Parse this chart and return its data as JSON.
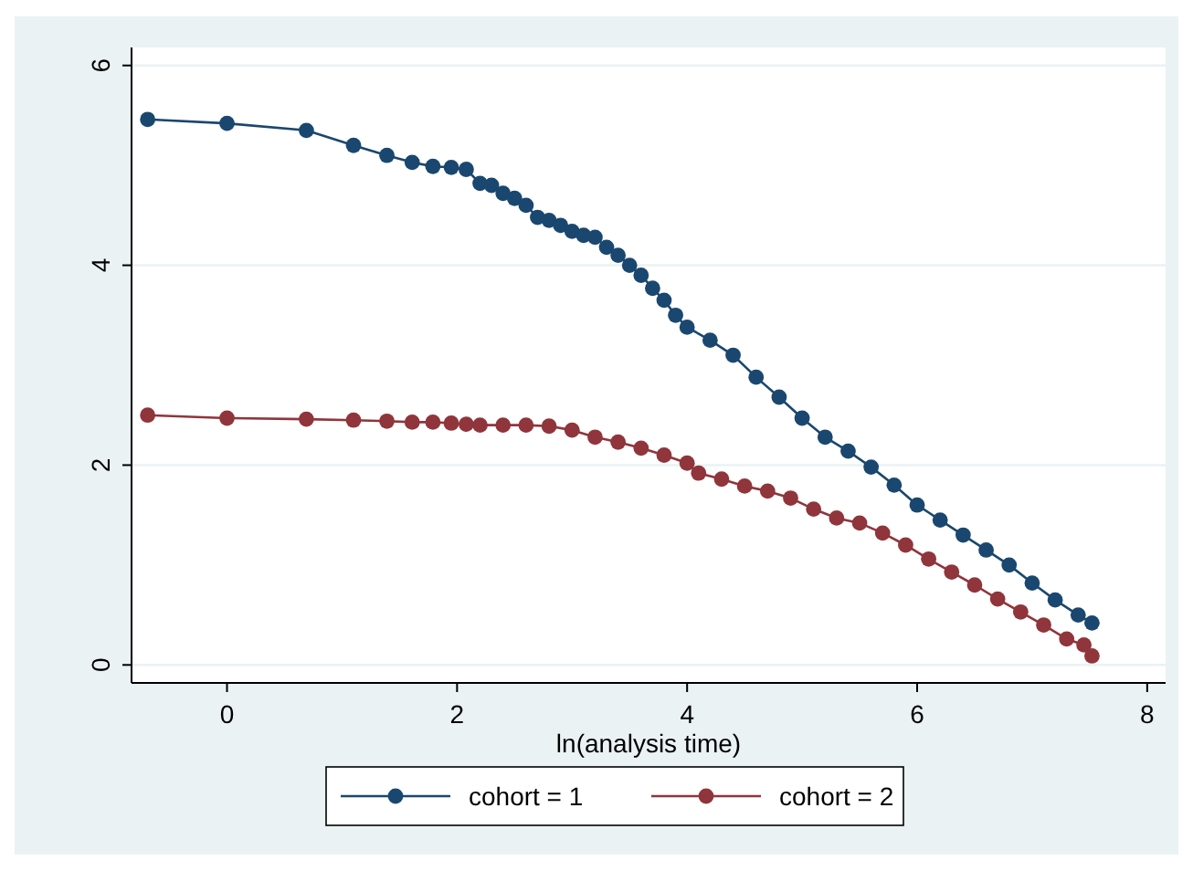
{
  "chart_data": {
    "type": "line",
    "xlabel": "ln(analysis time)",
    "xlim": [
      -0.83,
      8.16
    ],
    "xticks": [
      0,
      2,
      4,
      6,
      8
    ],
    "ylim": [
      -0.18,
      6.18
    ],
    "yticks": [
      0,
      2,
      4,
      6
    ],
    "grid": "y",
    "legend": "bottom",
    "marker": "circle",
    "line_style": "solid",
    "series": [
      {
        "name": "cohort = 1",
        "color": "#1a476f",
        "x": [
          -0.69,
          0,
          0.69,
          1.1,
          1.39,
          1.61,
          1.79,
          1.95,
          2.08,
          2.2,
          2.3,
          2.4,
          2.5,
          2.6,
          2.7,
          2.8,
          2.9,
          3.0,
          3.1,
          3.2,
          3.3,
          3.4,
          3.5,
          3.6,
          3.7,
          3.8,
          3.9,
          4.0,
          4.2,
          4.4,
          4.6,
          4.8,
          5.0,
          5.2,
          5.4,
          5.6,
          5.8,
          6.0,
          6.2,
          6.4,
          6.6,
          6.8,
          7.0,
          7.2,
          7.4,
          7.52
        ],
        "values": [
          5.46,
          5.42,
          5.35,
          5.2,
          5.1,
          5.03,
          4.99,
          4.98,
          4.96,
          4.82,
          4.8,
          4.72,
          4.67,
          4.6,
          4.48,
          4.45,
          4.4,
          4.34,
          4.3,
          4.28,
          4.18,
          4.1,
          4.0,
          3.9,
          3.77,
          3.65,
          3.5,
          3.38,
          3.25,
          3.1,
          2.88,
          2.68,
          2.47,
          2.28,
          2.14,
          1.98,
          1.8,
          1.6,
          1.45,
          1.3,
          1.15,
          1.0,
          0.82,
          0.65,
          0.5,
          0.42
        ]
      },
      {
        "name": "cohort = 2",
        "color": "#90353b",
        "x": [
          -0.69,
          0,
          0.69,
          1.1,
          1.39,
          1.61,
          1.79,
          1.95,
          2.08,
          2.2,
          2.4,
          2.6,
          2.8,
          3.0,
          3.2,
          3.4,
          3.6,
          3.8,
          4.0,
          4.1,
          4.3,
          4.5,
          4.7,
          4.9,
          5.1,
          5.3,
          5.5,
          5.7,
          5.9,
          6.1,
          6.3,
          6.5,
          6.7,
          6.9,
          7.1,
          7.3,
          7.45,
          7.52
        ],
        "values": [
          2.5,
          2.47,
          2.46,
          2.45,
          2.44,
          2.43,
          2.43,
          2.42,
          2.41,
          2.4,
          2.4,
          2.4,
          2.39,
          2.35,
          2.28,
          2.23,
          2.17,
          2.1,
          2.02,
          1.92,
          1.86,
          1.79,
          1.74,
          1.67,
          1.56,
          1.47,
          1.42,
          1.32,
          1.2,
          1.06,
          0.93,
          0.8,
          0.66,
          0.53,
          0.4,
          0.26,
          0.2,
          0.09
        ]
      }
    ]
  }
}
